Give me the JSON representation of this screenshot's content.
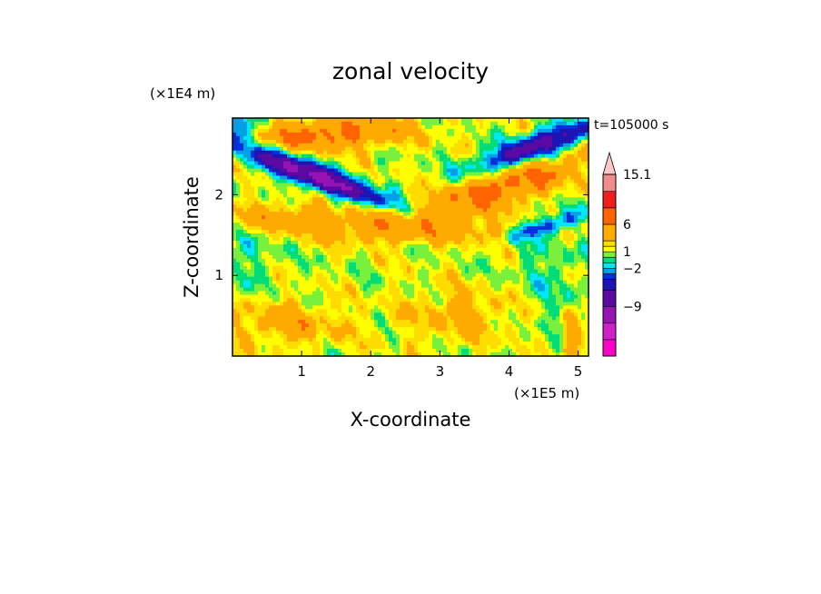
{
  "chart_data": {
    "type": "heatmap",
    "title": "zonal velocity",
    "xlabel": "X-coordinate",
    "ylabel": "Z-coordinate",
    "x_scale_label": "(×1E5 m)",
    "y_scale_label": "(×1E4 m)",
    "time_label": "t=105000 s",
    "xlim": [
      0,
      5.15
    ],
    "ylim": [
      0,
      2.95
    ],
    "x_ticks": [
      1,
      2,
      3,
      4,
      5
    ],
    "y_ticks": [
      1,
      2
    ],
    "colorbar": {
      "labels": [
        {
          "text": "15.1",
          "value": 15.1
        },
        {
          "text": "6",
          "value": 6
        },
        {
          "text": "1",
          "value": 1
        },
        {
          "text": "−2",
          "value": -2
        },
        {
          "text": "−9",
          "value": -9
        }
      ],
      "levels": [
        {
          "min": -18,
          "max": -15,
          "color": "#ff00c8"
        },
        {
          "min": -15,
          "max": -12,
          "color": "#d21ec8"
        },
        {
          "min": -12,
          "max": -9,
          "color": "#9614b4"
        },
        {
          "min": -9,
          "max": -6,
          "color": "#5a0aa0"
        },
        {
          "min": -6,
          "max": -4,
          "color": "#1e14b4"
        },
        {
          "min": -4,
          "max": -3,
          "color": "#0032dc"
        },
        {
          "min": -3,
          "max": -2,
          "color": "#00a0e6"
        },
        {
          "min": -2,
          "max": -1,
          "color": "#00e6ff"
        },
        {
          "min": -1,
          "max": 0,
          "color": "#00dc78"
        },
        {
          "min": 0,
          "max": 1,
          "color": "#78f03c"
        },
        {
          "min": 1,
          "max": 2,
          "color": "#ffff00"
        },
        {
          "min": 2,
          "max": 3,
          "color": "#ffdc00"
        },
        {
          "min": 3,
          "max": 6,
          "color": "#ffaa00"
        },
        {
          "min": 6,
          "max": 9,
          "color": "#ff6400"
        },
        {
          "min": 9,
          "max": 12,
          "color": "#f01e1e"
        },
        {
          "min": 12,
          "max": 15.1,
          "color": "#f08c8c"
        },
        {
          "min": 15.1,
          "max": 18,
          "color": "#ffc8c8"
        }
      ]
    },
    "field_features": [
      {
        "x": 1.0,
        "z": 2.3,
        "sx": 0.7,
        "sz": 0.12,
        "amp": -9,
        "tilt": -0.3
      },
      {
        "x": 1.7,
        "z": 2.05,
        "sx": 0.6,
        "sz": 0.08,
        "amp": -4,
        "tilt": -0.3
      },
      {
        "x": 4.4,
        "z": 2.6,
        "sx": 0.7,
        "sz": 0.12,
        "amp": -9,
        "tilt": 0.3
      },
      {
        "x": 4.5,
        "z": 1.6,
        "sx": 0.35,
        "sz": 0.08,
        "amp": -6,
        "tilt": 0.25
      },
      {
        "x": 0.05,
        "z": 2.85,
        "sx": 0.2,
        "sz": 0.15,
        "amp": -6,
        "tilt": 0
      },
      {
        "x": 1.4,
        "z": 2.75,
        "sx": 0.8,
        "sz": 0.14,
        "amp": 6,
        "tilt": 0.05
      },
      {
        "x": 3.9,
        "z": 2.1,
        "sx": 0.9,
        "sz": 0.18,
        "amp": 6,
        "tilt": 0.25
      },
      {
        "x": 1.0,
        "z": 1.7,
        "sx": 1.0,
        "sz": 0.14,
        "amp": 3.5,
        "tilt": -0.05
      },
      {
        "x": 3.0,
        "z": 1.55,
        "sx": 1.2,
        "sz": 0.12,
        "amp": 2.5,
        "tilt": 0
      },
      {
        "x": 0.8,
        "z": 0.4,
        "sx": 0.6,
        "sz": 0.2,
        "amp": 3,
        "tilt": 0
      },
      {
        "x": 3.3,
        "z": 0.5,
        "sx": 0.6,
        "sz": 0.25,
        "amp": 2.5,
        "tilt": 0
      },
      {
        "x": 4.6,
        "z": 1.0,
        "sx": 0.4,
        "sz": 0.5,
        "amp": -1.5,
        "tilt": 0
      },
      {
        "x": 0.3,
        "z": 1.3,
        "sx": 0.3,
        "sz": 0.3,
        "amp": -1.5,
        "tilt": 0
      },
      {
        "x": 4.9,
        "z": 0.2,
        "sx": 0.08,
        "sz": 0.2,
        "amp": 6,
        "tilt": 0
      }
    ]
  }
}
